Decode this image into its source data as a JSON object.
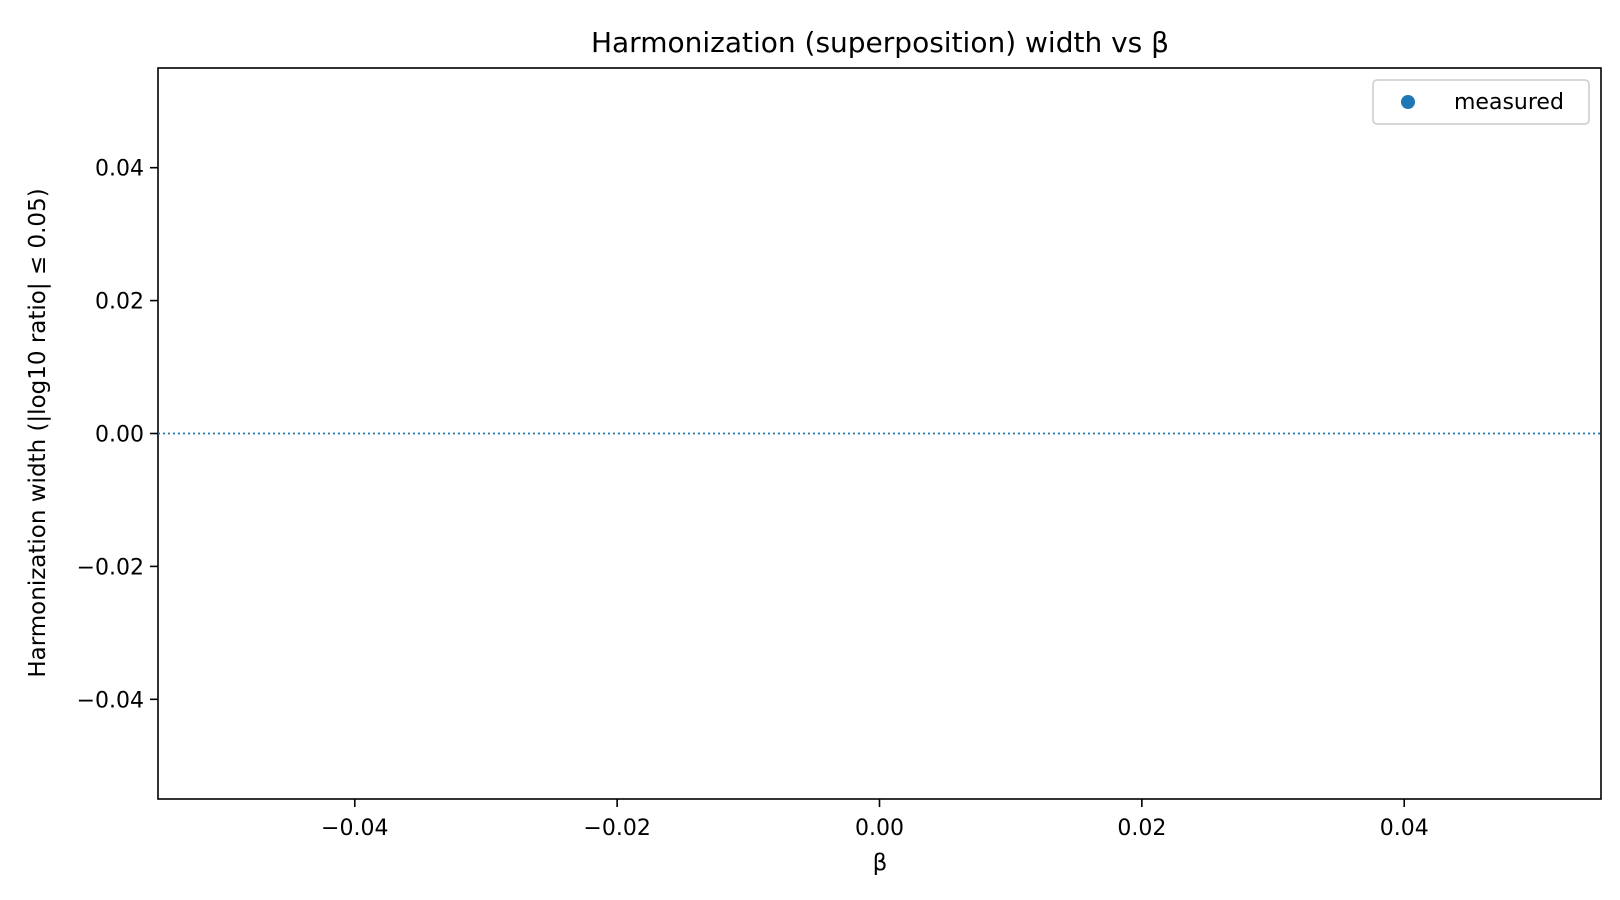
{
  "chart_data": {
    "type": "scatter",
    "title": "Harmonization (superposition) width vs β",
    "xlabel": "β",
    "ylabel": "Harmonization width (|log10 ratio| ≤ 0.05)",
    "xlim": [
      -0.055,
      0.055
    ],
    "ylim": [
      -0.055,
      0.055
    ],
    "xticks": [
      -0.04,
      -0.02,
      0.0,
      0.02,
      0.04
    ],
    "yticks": [
      -0.04,
      -0.02,
      0.0,
      0.02,
      0.04
    ],
    "xtick_labels": [
      "−0.04",
      "−0.02",
      "0.00",
      "0.02",
      "0.04"
    ],
    "ytick_labels": [
      "−0.04",
      "−0.02",
      "0.00",
      "0.02",
      "0.04"
    ],
    "grid": false,
    "legend_position": "top-right",
    "series": [
      {
        "name": "measured",
        "color": "#1f77b4",
        "x": [],
        "y": []
      }
    ],
    "reference_lines": [
      {
        "orientation": "horizontal",
        "y": 0.0,
        "style": "dotted",
        "color": "#1f77b4"
      }
    ]
  }
}
